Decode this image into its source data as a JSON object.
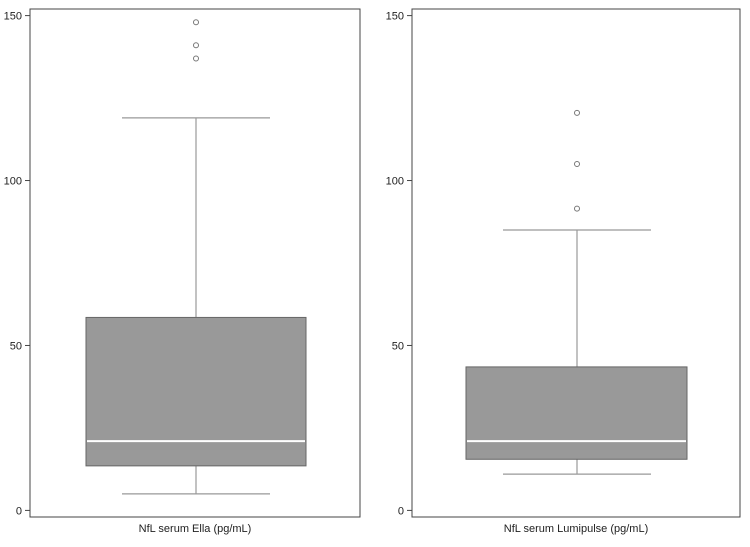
{
  "chart_data": [
    {
      "type": "box",
      "xlabel": "NfL serum Ella (pg/mL)",
      "ylim": [
        -2,
        152
      ],
      "yticks": [
        0,
        50,
        100,
        150
      ],
      "tick_labels": [
        "0",
        "50",
        "100",
        "150"
      ],
      "box": {
        "whisker_low": 5,
        "q1": 13.5,
        "median": 21,
        "q3": 58.5,
        "whisker_high": 119
      },
      "outliers": [
        137,
        141,
        148
      ],
      "colors": {
        "box_fill": "#999999",
        "box_stroke": "#666666",
        "median": "#ffffff",
        "whisker": "#999999",
        "outlier": "#777777"
      }
    },
    {
      "type": "box",
      "xlabel": "NfL serum Lumipulse (pg/mL)",
      "ylim": [
        -2,
        152
      ],
      "yticks": [
        0,
        50,
        100,
        150
      ],
      "tick_labels": [
        "0",
        "50",
        "100",
        "150"
      ],
      "box": {
        "whisker_low": 11,
        "q1": 15.5,
        "median": 21,
        "q3": 43.5,
        "whisker_high": 85
      },
      "outliers": [
        91.5,
        105,
        120.5
      ],
      "colors": {
        "box_fill": "#999999",
        "box_stroke": "#666666",
        "median": "#ffffff",
        "whisker": "#999999",
        "outlier": "#777777"
      }
    }
  ]
}
